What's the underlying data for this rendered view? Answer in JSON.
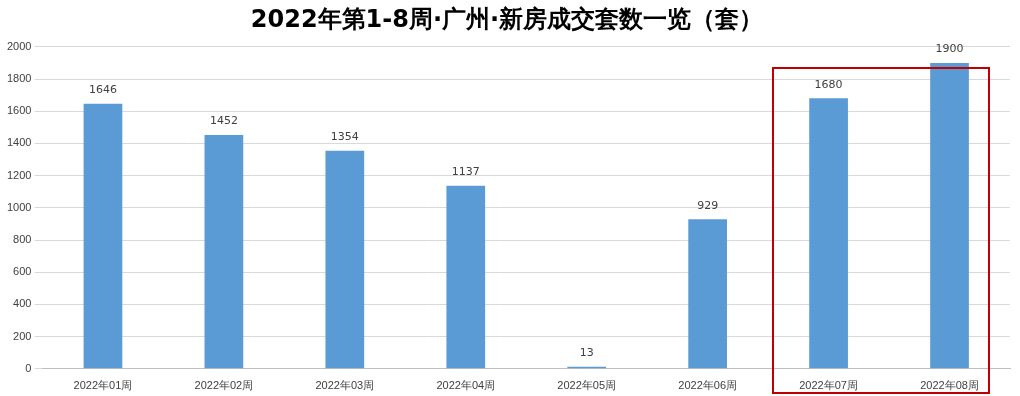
{
  "chart_data": {
    "type": "bar",
    "title": "2022年第1-8周·广州·新房成交套数一览（套）",
    "categories": [
      "2022年01周",
      "2022年02周",
      "2022年03周",
      "2022年04周",
      "2022年05周",
      "2022年06周",
      "2022年07周",
      "2022年08周"
    ],
    "values": [
      1646,
      1452,
      1354,
      1137,
      13,
      929,
      1680,
      1900
    ],
    "color": "#5b9bd5",
    "ylim": [
      0,
      2000
    ],
    "yticks": [
      0,
      200,
      400,
      600,
      800,
      1000,
      1200,
      1400,
      1600,
      1800,
      2000
    ],
    "grid": "y",
    "data_labels": true
  }
}
